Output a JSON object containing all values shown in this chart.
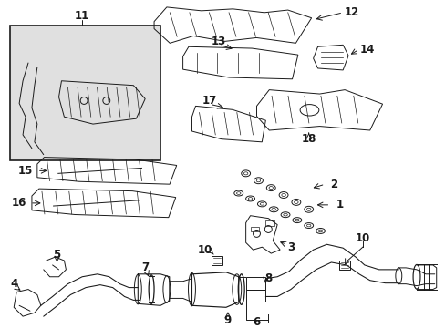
{
  "bg_color": "#ffffff",
  "line_color": "#1a1a1a",
  "lw": 0.7,
  "fs": 7.5,
  "fw": "bold",
  "inset_bg": "#e0e0e0",
  "inset_border": "#000000",
  "figsize": [
    4.89,
    3.6
  ],
  "dpi": 100,
  "xlim": [
    0,
    489
  ],
  "ylim": [
    0,
    360
  ]
}
